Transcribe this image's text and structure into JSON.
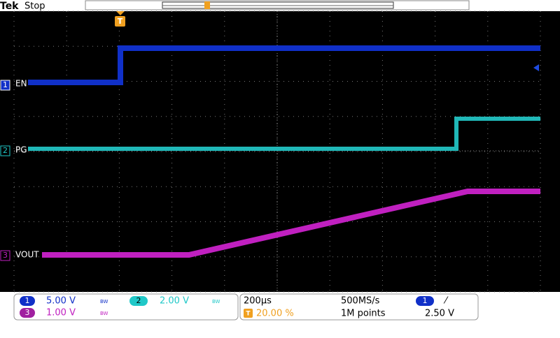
{
  "header": {
    "brand": "Tek",
    "status": "Stop"
  },
  "channels": [
    {
      "number": "1",
      "label": "EN",
      "scale": "5.00 V",
      "bw": "BW"
    },
    {
      "number": "2",
      "label": "PG",
      "scale": "2.00 V",
      "bw": "BW"
    },
    {
      "number": "3",
      "label": "VOUT",
      "scale": "1.00 V",
      "bw": "BW"
    }
  ],
  "trigger_marker": "T",
  "acquisition": {
    "timebase": "200µs",
    "sample_rate": "500MS/s",
    "record_length": "1M points",
    "trigger_position": "20.00 %",
    "trigger_source": "1",
    "trigger_slope": "⁄",
    "trigger_level": "2.50 V"
  }
}
